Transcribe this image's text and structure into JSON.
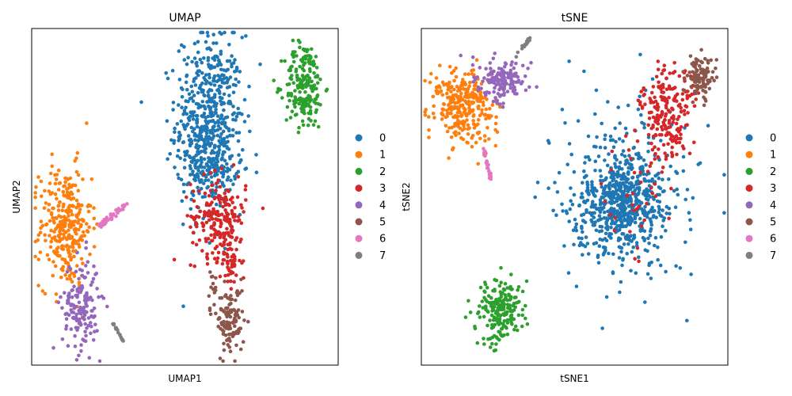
{
  "chart_data": [
    {
      "type": "scatter",
      "title": "UMAP",
      "xlabel": "UMAP1",
      "ylabel": "UMAP2",
      "xlim": [
        0,
        100
      ],
      "ylim": [
        0,
        100
      ],
      "grid": false,
      "legend": "right",
      "series": [
        {
          "name": "0",
          "color": "#1f77b4",
          "clusters": [
            {
              "cx": 58,
              "cy": 72,
              "sx": 5.5,
              "sy": 13,
              "n": 560
            },
            {
              "cx": 58,
              "cy": 59,
              "sx": 4.0,
              "sy": 4,
              "n": 80
            }
          ]
        },
        {
          "name": "1",
          "color": "#ff7f0e",
          "clusters": [
            {
              "cx": 11,
              "cy": 41,
              "sx": 4.2,
              "sy": 9,
              "n": 300
            }
          ]
        },
        {
          "name": "2",
          "color": "#2ca02c",
          "clusters": [
            {
              "cx": 89,
              "cy": 83,
              "sx": 3.2,
              "sy": 6.5,
              "n": 200
            }
          ]
        },
        {
          "name": "3",
          "color": "#d62728",
          "clusters": [
            {
              "cx": 61,
              "cy": 44,
              "sx": 4.5,
              "sy": 6,
              "n": 200
            },
            {
              "cx": 65,
              "cy": 31,
              "sx": 1.8,
              "sy": 4,
              "n": 50
            }
          ]
        },
        {
          "name": "4",
          "color": "#9467bd",
          "clusters": [
            {
              "cx": 16,
              "cy": 18,
              "sx": 3.0,
              "sy": 7,
              "n": 160
            }
          ]
        },
        {
          "name": "5",
          "color": "#8c564b",
          "clusters": [
            {
              "cx": 65,
              "cy": 13,
              "sx": 2.2,
              "sy": 5,
              "n": 110
            },
            {
              "cx": 59,
              "cy": 22,
              "sx": 0.8,
              "sy": 3.5,
              "n": 16
            }
          ]
        },
        {
          "name": "6",
          "color": "#e377c2",
          "line": {
            "x1": 22,
            "y1": 41,
            "x2": 31,
            "y2": 48,
            "n": 45,
            "w": 0.8
          }
        },
        {
          "name": "7",
          "color": "#7f7f7f",
          "line": {
            "x1": 26.5,
            "y1": 12.5,
            "x2": 30,
            "y2": 7,
            "n": 18,
            "w": 0.3
          }
        }
      ]
    },
    {
      "type": "scatter",
      "title": "tSNE",
      "xlabel": "tSNE1",
      "ylabel": "tSNE2",
      "xlim": [
        0,
        100
      ],
      "ylim": [
        0,
        100
      ],
      "grid": false,
      "legend": "right",
      "series": [
        {
          "name": "0",
          "color": "#1f77b4",
          "clusters": [
            {
              "cx": 65,
              "cy": 48,
              "sx": 6,
              "sy": 7,
              "n": 420
            },
            {
              "cx": 65,
              "cy": 50,
              "sx": 11,
              "sy": 13,
              "n": 340
            }
          ]
        },
        {
          "name": "1",
          "color": "#ff7f0e",
          "clusters": [
            {
              "cx": 14,
              "cy": 77,
              "sx": 5,
              "sy": 6,
              "n": 300
            }
          ]
        },
        {
          "name": "2",
          "color": "#2ca02c",
          "clusters": [
            {
              "cx": 26,
              "cy": 16,
              "sx": 3.5,
              "sy": 4.5,
              "n": 200
            }
          ]
        },
        {
          "name": "3",
          "color": "#d62728",
          "clusters": [
            {
              "cx": 80,
              "cy": 74,
              "sx": 4.5,
              "sy": 7,
              "n": 220
            },
            {
              "cx": 68,
              "cy": 50,
              "sx": 6,
              "sy": 8,
              "n": 30
            }
          ]
        },
        {
          "name": "4",
          "color": "#9467bd",
          "clusters": [
            {
              "cx": 26,
              "cy": 85,
              "sx": 4,
              "sy": 3,
              "n": 150
            }
          ]
        },
        {
          "name": "5",
          "color": "#8c564b",
          "clusters": [
            {
              "cx": 91,
              "cy": 86,
              "sx": 2.5,
              "sy": 3.5,
              "n": 110
            }
          ]
        },
        {
          "name": "6",
          "color": "#e377c2",
          "line": {
            "x1": 20.5,
            "y1": 64,
            "x2": 23,
            "y2": 54,
            "n": 25,
            "w": 0.5
          }
        },
        {
          "name": "7",
          "color": "#7f7f7f",
          "line": {
            "x1": 31,
            "y1": 92,
            "x2": 36,
            "y2": 97.5,
            "n": 14,
            "w": 0.5
          }
        }
      ]
    }
  ]
}
